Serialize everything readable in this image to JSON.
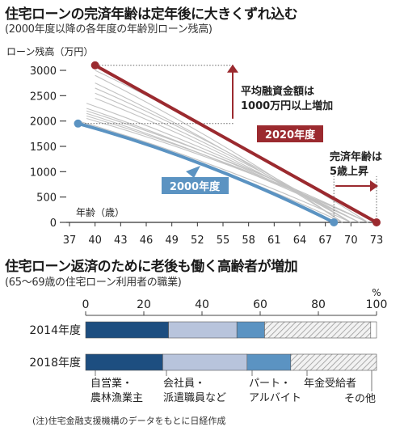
{
  "chart1": {
    "title": "住宅ローンの完済年齢は定年後に大きくずれ込む",
    "subtitle": "(2000年度以降の各年度の年齢別ローン残高)",
    "ylabel": "ローン残高（万円）",
    "xlabel": "年齢（歳）",
    "series_2020_label": "2020年度",
    "series_2000_label": "2000年度",
    "annotation_amount": [
      "平均融資金額は",
      "1000万円以上増加"
    ],
    "annotation_age": [
      "完済年齢は",
      "5歳上昇"
    ],
    "colors": {
      "series_2020": "#9b2a2f",
      "series_2000": "#5b93c2",
      "intermediate": "#c2c2c2"
    }
  },
  "chart2": {
    "title": "住宅ローン返済のために老後も働く高齢者が増加",
    "subtitle": "(65〜69歳の住宅ローン利用者の職業)",
    "unit": "%",
    "categories": {
      "self_employed": [
        "自営業・",
        "農林漁業主"
      ],
      "employee": [
        "会社員・",
        "派遣職員など"
      ],
      "part_time": [
        "パート・",
        "アルバイト"
      ],
      "pension": "年金受給者",
      "other": "その他"
    },
    "colors": {
      "self_employed": "#1d4e80",
      "employee": "#b8c4dc",
      "part_time": "#5b93c2",
      "pension": "#bdbdbd",
      "other": "#ffffff"
    }
  },
  "note": "(注)住宅金融支援機構のデータをもとに日経作成",
  "chart_data": [
    {
      "type": "line",
      "xlabel": "年齢（歳）",
      "ylabel": "ローン残高（万円）",
      "xlim": [
        37,
        73
      ],
      "ylim": [
        0,
        3000
      ],
      "x_ticks": [
        37,
        40,
        43,
        46,
        49,
        52,
        55,
        58,
        61,
        64,
        67,
        70,
        73
      ],
      "y_ticks": [
        0,
        500,
        1000,
        1500,
        2000,
        2500,
        3000
      ],
      "series": [
        {
          "name": "2020年度",
          "x": [
            40,
            73
          ],
          "y": [
            3100,
            0
          ]
        },
        {
          "name": "2000年度",
          "x": [
            38,
            68
          ],
          "y": [
            1950,
            0
          ]
        }
      ],
      "intermediate_series": [
        {
          "x": [
            40,
            69
          ],
          "y": [
            2900,
            0
          ]
        },
        {
          "x": [
            40,
            69
          ],
          "y": [
            2750,
            0
          ]
        },
        {
          "x": [
            40,
            70
          ],
          "y": [
            2650,
            0
          ]
        },
        {
          "x": [
            40,
            70
          ],
          "y": [
            2550,
            0
          ]
        },
        {
          "x": [
            40,
            70
          ],
          "y": [
            2450,
            0
          ]
        },
        {
          "x": [
            39,
            71
          ],
          "y": [
            2350,
            0
          ]
        },
        {
          "x": [
            39,
            71
          ],
          "y": [
            2250,
            0
          ]
        },
        {
          "x": [
            39,
            71
          ],
          "y": [
            2150,
            0
          ]
        },
        {
          "x": [
            39,
            72
          ],
          "y": [
            2100,
            0
          ]
        },
        {
          "x": [
            39,
            72
          ],
          "y": [
            2200,
            0
          ]
        },
        {
          "x": [
            39,
            72
          ],
          "y": [
            2050,
            0
          ]
        },
        {
          "x": [
            38,
            70
          ],
          "y": [
            2000,
            0
          ]
        },
        {
          "x": [
            39,
            69
          ],
          "y": [
            1900,
            0
          ]
        },
        {
          "x": [
            40,
            72
          ],
          "y": [
            3000,
            0
          ]
        }
      ]
    },
    {
      "type": "bar",
      "orientation": "horizontal",
      "stacked": true,
      "categories": [
        "2014年度",
        "2018年度"
      ],
      "x_ticks": [
        0,
        20,
        40,
        60,
        80,
        100
      ],
      "xlim": [
        0,
        100
      ],
      "series": [
        {
          "name": "自営業・農林漁業主",
          "values": [
            28.5,
            26.5
          ]
        },
        {
          "name": "会社員・派遣職員など",
          "values": [
            23.5,
            29.0
          ]
        },
        {
          "name": "パート・アルバイト",
          "values": [
            9.5,
            15.0
          ]
        },
        {
          "name": "年金受給者",
          "values": [
            36.5,
            29.5
          ]
        },
        {
          "name": "その他",
          "values": [
            2.0,
            0.0
          ]
        }
      ]
    }
  ]
}
